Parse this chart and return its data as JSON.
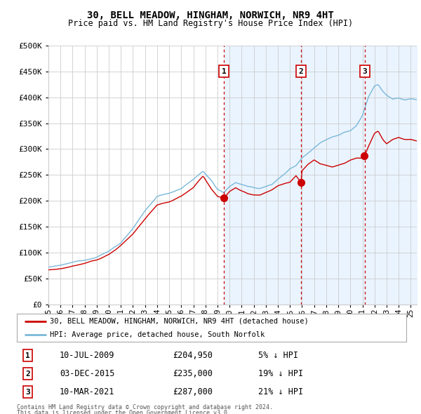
{
  "title": "30, BELL MEADOW, HINGHAM, NORWICH, NR9 4HT",
  "subtitle": "Price paid vs. HM Land Registry's House Price Index (HPI)",
  "legend_line1": "30, BELL MEADOW, HINGHAM, NORWICH, NR9 4HT (detached house)",
  "legend_line2": "HPI: Average price, detached house, South Norfolk",
  "footnote1": "Contains HM Land Registry data © Crown copyright and database right 2024.",
  "footnote2": "This data is licensed under the Open Government Licence v3.0.",
  "transactions": [
    {
      "label": "1",
      "date": "10-JUL-2009",
      "price": 204950,
      "pct": "5%",
      "direction": "↓",
      "x": 2009.53
    },
    {
      "label": "2",
      "date": "03-DEC-2015",
      "price": 235000,
      "pct": "19%",
      "direction": "↓",
      "x": 2015.92
    },
    {
      "label": "3",
      "date": "10-MAR-2021",
      "price": 287000,
      "pct": "21%",
      "direction": "↓",
      "x": 2021.19
    }
  ],
  "hpi_color": "#7ab8d9",
  "price_color": "#cc0000",
  "fill_color": "#ddeeff",
  "vline_color": "#cc0000",
  "background_color": "#ffffff",
  "grid_color": "#cccccc",
  "ylim": [
    0,
    500000
  ],
  "xlim": [
    1995,
    2025.5
  ],
  "ytick_vals": [
    0,
    50000,
    100000,
    150000,
    200000,
    250000,
    300000,
    350000,
    400000,
    450000,
    500000
  ],
  "ytick_labels": [
    "£0",
    "£50K",
    "£100K",
    "£150K",
    "£200K",
    "£250K",
    "£300K",
    "£350K",
    "£400K",
    "£450K",
    "£500K"
  ],
  "xtick_vals": [
    1995,
    1996,
    1997,
    1998,
    1999,
    2000,
    2001,
    2002,
    2003,
    2004,
    2005,
    2006,
    2007,
    2008,
    2009,
    2010,
    2011,
    2012,
    2013,
    2014,
    2015,
    2016,
    2017,
    2018,
    2019,
    2020,
    2021,
    2022,
    2023,
    2024,
    2025
  ],
  "xtick_labels": [
    "95",
    "96",
    "97",
    "98",
    "99",
    "00",
    "01",
    "02",
    "03",
    "04",
    "05",
    "06",
    "07",
    "08",
    "09",
    "10",
    "11",
    "12",
    "13",
    "14",
    "15",
    "16",
    "17",
    "18",
    "19",
    "20",
    "21",
    "22",
    "23",
    "24",
    "25"
  ]
}
